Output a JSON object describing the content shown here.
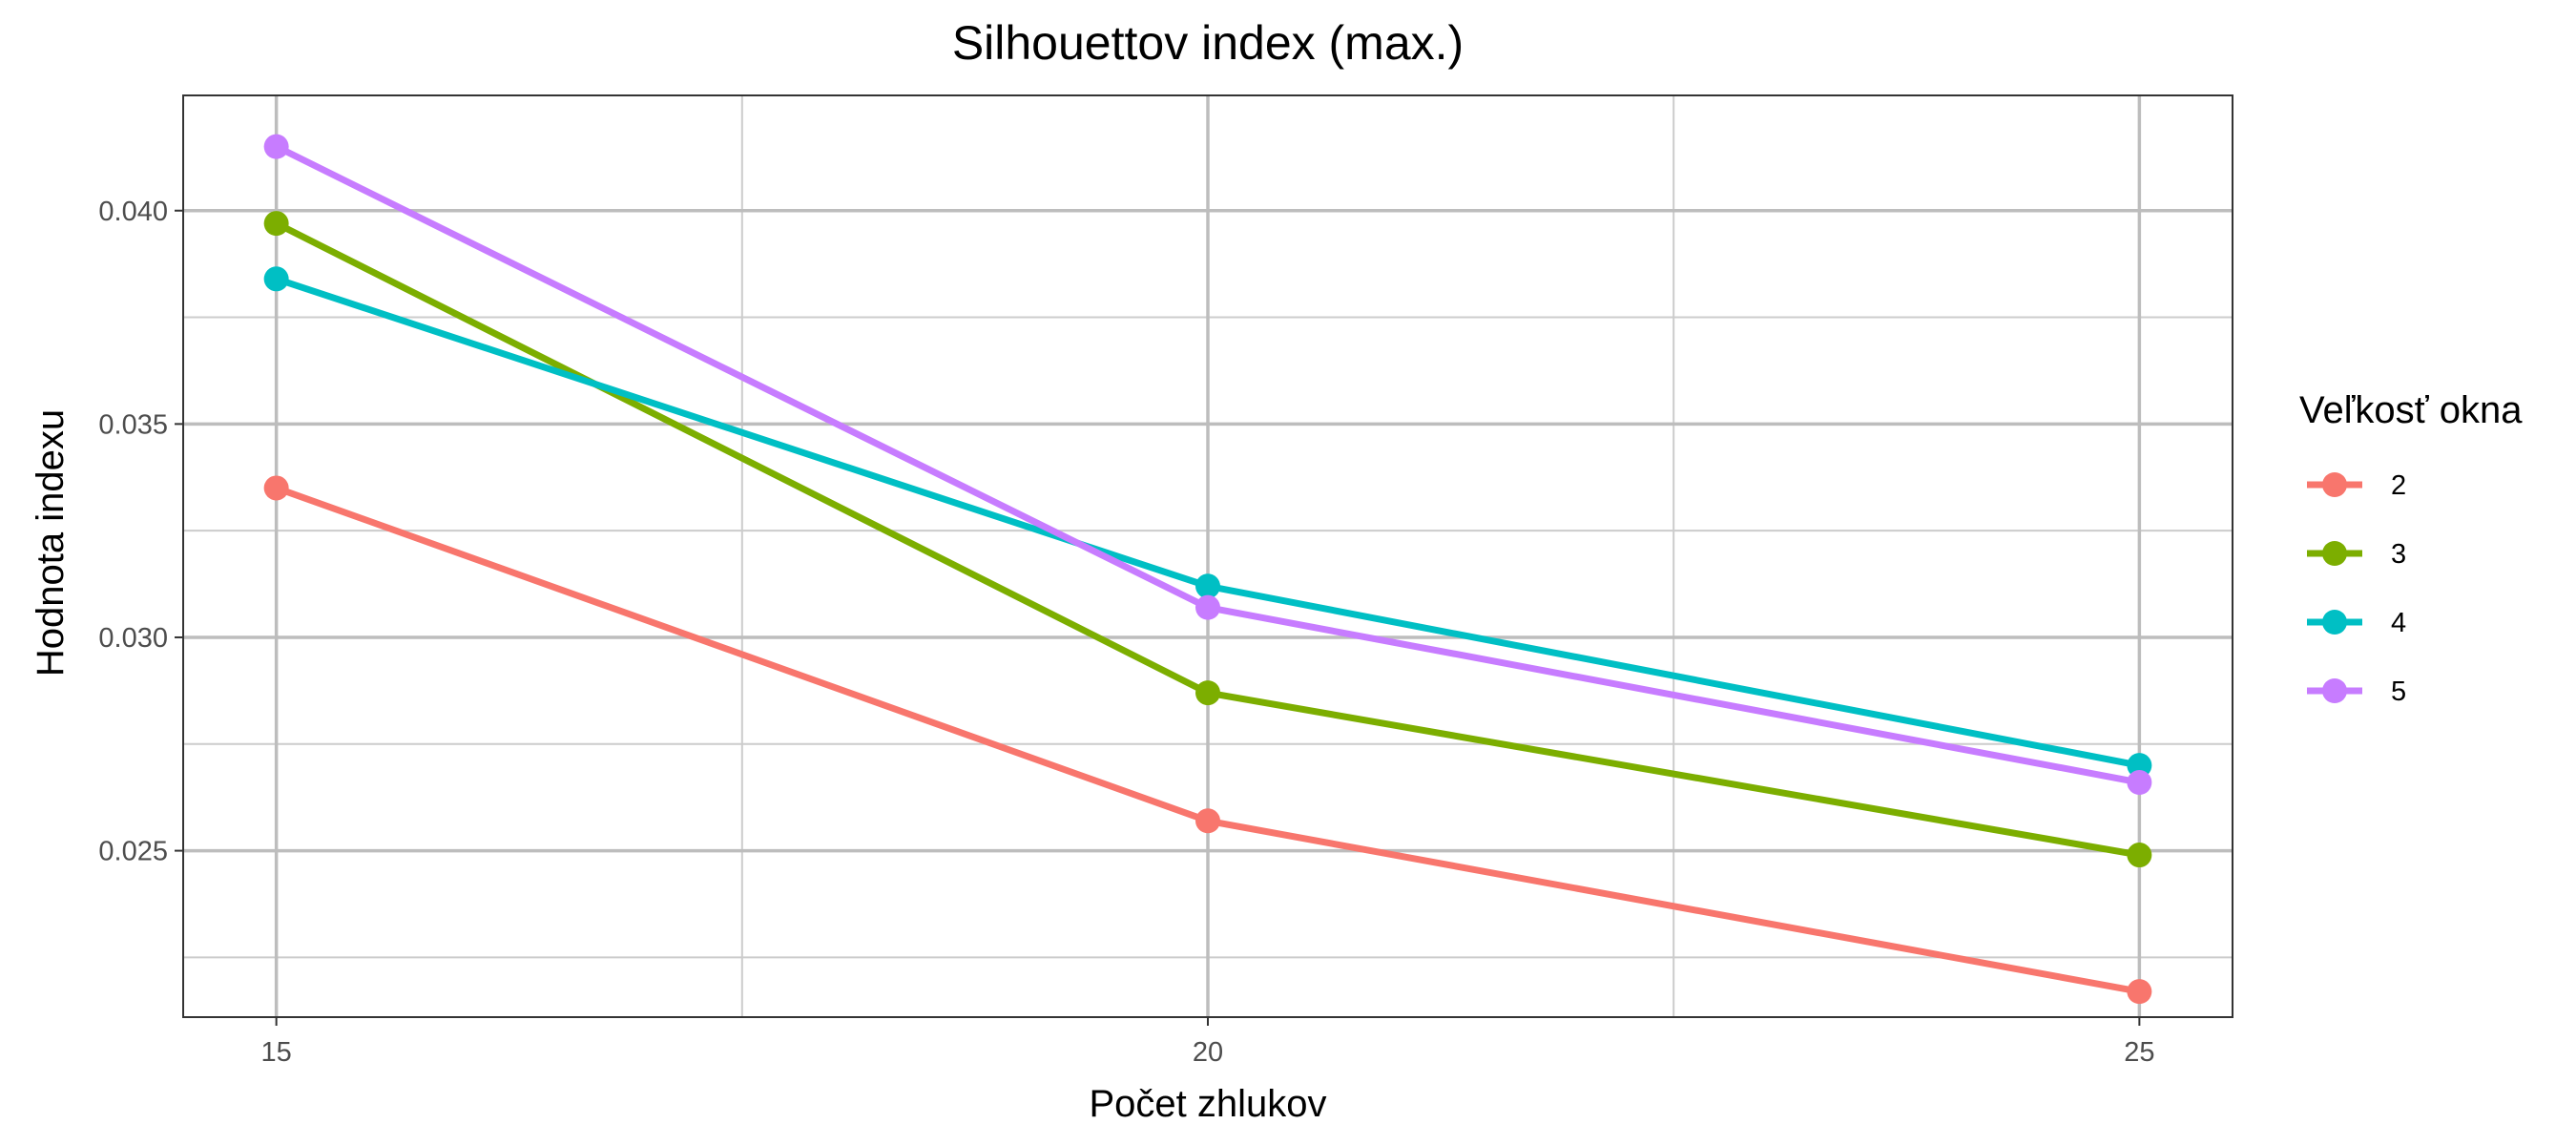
{
  "chart_data": {
    "type": "line",
    "title": "Silhouettov index (max.)",
    "xlabel": "Počet zhlukov",
    "ylabel": "Hodnota indexu",
    "x": [
      15,
      20,
      25
    ],
    "xlim": [
      14.5,
      25.5
    ],
    "ylim": [
      0.0211,
      0.0427
    ],
    "x_ticks": [
      15,
      20,
      25
    ],
    "x_tick_labels": [
      "15",
      "20",
      "25"
    ],
    "x_minor_ticks": [
      17.5,
      22.5
    ],
    "y_ticks": [
      0.025,
      0.03,
      0.035,
      0.04
    ],
    "y_tick_labels": [
      "0.025",
      "0.030",
      "0.035",
      "0.040"
    ],
    "y_minor_ticks": [
      0.0225,
      0.0275,
      0.0325,
      0.0375
    ],
    "grid": true,
    "legend": {
      "title": "Veľkosť okna",
      "position": "right"
    },
    "series": [
      {
        "name": "2",
        "color": "#F8766D",
        "values": [
          0.0335,
          0.0257,
          0.0217
        ]
      },
      {
        "name": "3",
        "color": "#7CAE00",
        "values": [
          0.0397,
          0.0287,
          0.0249
        ]
      },
      {
        "name": "4",
        "color": "#00BFC4",
        "values": [
          0.0384,
          0.0312,
          0.027
        ]
      },
      {
        "name": "5",
        "color": "#C77CFF",
        "values": [
          0.0415,
          0.0307,
          0.0266
        ]
      }
    ]
  }
}
